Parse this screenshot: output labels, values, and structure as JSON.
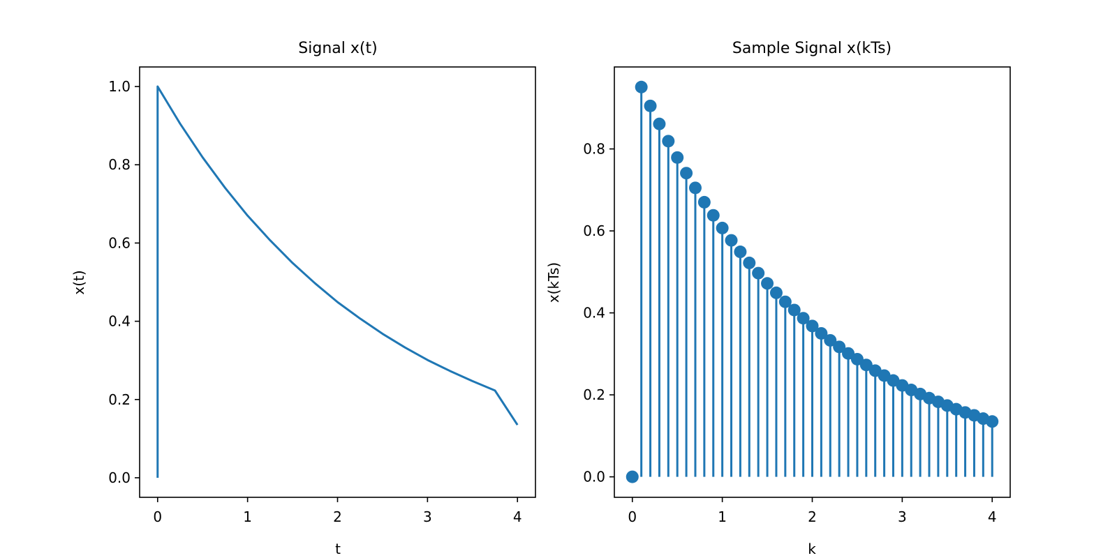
{
  "chart_data": [
    {
      "type": "line",
      "title": "Signal x(t)",
      "xlabel": "t",
      "ylabel": "x(t)",
      "xlim": [
        -0.2,
        4.2
      ],
      "ylim": [
        -0.05,
        1.05
      ],
      "xticks": [
        0,
        1,
        2,
        3,
        4
      ],
      "xtick_labels": [
        "0",
        "1",
        "2",
        "3",
        "4"
      ],
      "yticks": [
        0.0,
        0.2,
        0.4,
        0.6,
        0.8,
        1.0
      ],
      "ytick_labels": [
        "0.0",
        "0.2",
        "0.4",
        "0.6",
        "0.8",
        "1.0"
      ],
      "grid": false,
      "color": "#1f77b4",
      "series": [
        {
          "x": [
            0,
            0,
            0.25,
            0.5,
            0.75,
            1.0,
            1.25,
            1.5,
            1.75,
            2.0,
            2.25,
            2.5,
            2.75,
            3.0,
            3.25,
            3.5,
            3.75,
            4.0
          ],
          "values": [
            0,
            1.0,
            0.905,
            0.819,
            0.741,
            0.67,
            0.607,
            0.549,
            0.497,
            0.449,
            0.407,
            0.368,
            0.333,
            0.301,
            0.273,
            0.247,
            0.223,
            0.135
          ]
        }
      ]
    },
    {
      "type": "stem",
      "title": "Sample Signal x(kTs)",
      "xlabel": "k",
      "ylabel": "x(kTs)",
      "xlim": [
        -0.2,
        4.2
      ],
      "ylim": [
        -0.05,
        1.0
      ],
      "xticks": [
        0,
        1,
        2,
        3,
        4
      ],
      "xtick_labels": [
        "0",
        "1",
        "2",
        "3",
        "4"
      ],
      "yticks": [
        0.0,
        0.2,
        0.4,
        0.6,
        0.8
      ],
      "ytick_labels": [
        "0.0",
        "0.2",
        "0.4",
        "0.6",
        "0.8"
      ],
      "grid": false,
      "color": "#1f77b4",
      "series": [
        {
          "x": [
            0.0,
            0.1,
            0.2,
            0.3,
            0.4,
            0.5,
            0.6,
            0.7,
            0.8,
            0.9,
            1.0,
            1.1,
            1.2,
            1.3,
            1.4,
            1.5,
            1.6,
            1.7,
            1.8,
            1.9,
            2.0,
            2.1,
            2.2,
            2.3,
            2.4,
            2.5,
            2.6,
            2.7,
            2.8,
            2.9,
            3.0,
            3.1,
            3.2,
            3.3,
            3.4,
            3.5,
            3.6,
            3.7,
            3.8,
            3.9,
            4.0
          ],
          "values": [
            0.0,
            0.951,
            0.905,
            0.861,
            0.819,
            0.779,
            0.741,
            0.705,
            0.67,
            0.638,
            0.607,
            0.577,
            0.549,
            0.522,
            0.497,
            0.472,
            0.449,
            0.427,
            0.407,
            0.387,
            0.368,
            0.35,
            0.333,
            0.317,
            0.301,
            0.287,
            0.273,
            0.259,
            0.247,
            0.235,
            0.223,
            0.212,
            0.202,
            0.192,
            0.183,
            0.174,
            0.165,
            0.157,
            0.15,
            0.142,
            0.135
          ]
        }
      ]
    }
  ]
}
